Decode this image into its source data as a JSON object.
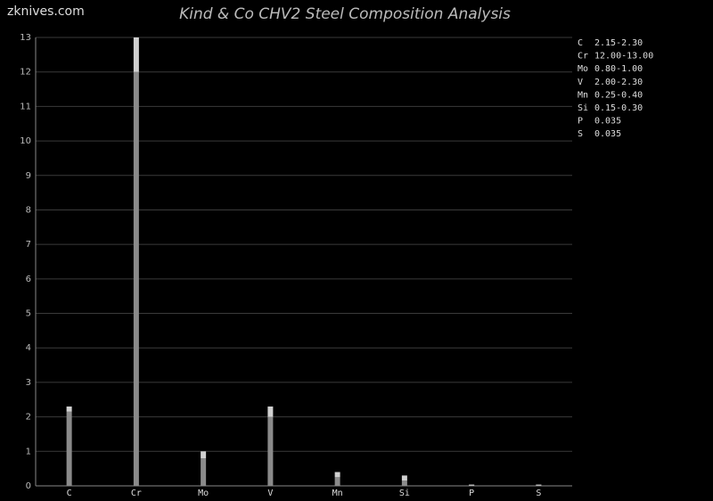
{
  "watermark": "zknives.com",
  "chart_data": {
    "type": "range-bar",
    "title": "Kind & Co CHV2 Steel Composition Analysis",
    "categories": [
      "C",
      "Cr",
      "Mo",
      "V",
      "Mn",
      "Si",
      "P",
      "S"
    ],
    "series": [
      {
        "color": "#8a8a8a",
        "values": [
          2.15,
          12,
          0.8,
          2,
          0.25,
          0.15,
          0.035,
          0.035
        ]
      },
      {
        "color": "#d0d0d0",
        "values": [
          2.3,
          13,
          1,
          2.3,
          0.4,
          0.3,
          0.035,
          0.035
        ]
      }
    ],
    "value_labels": [
      "2.15-2.30",
      "12.00-13.00",
      "0.80-1.00",
      "2.00-2.30",
      "0.25-0.40",
      "0.15-0.30",
      "0.035",
      "0.035"
    ],
    "ylim": [
      0,
      13
    ],
    "yticks": [
      0,
      1,
      2,
      3,
      4,
      5,
      6,
      7,
      8,
      9,
      10,
      11,
      12,
      13
    ],
    "grid": true
  }
}
